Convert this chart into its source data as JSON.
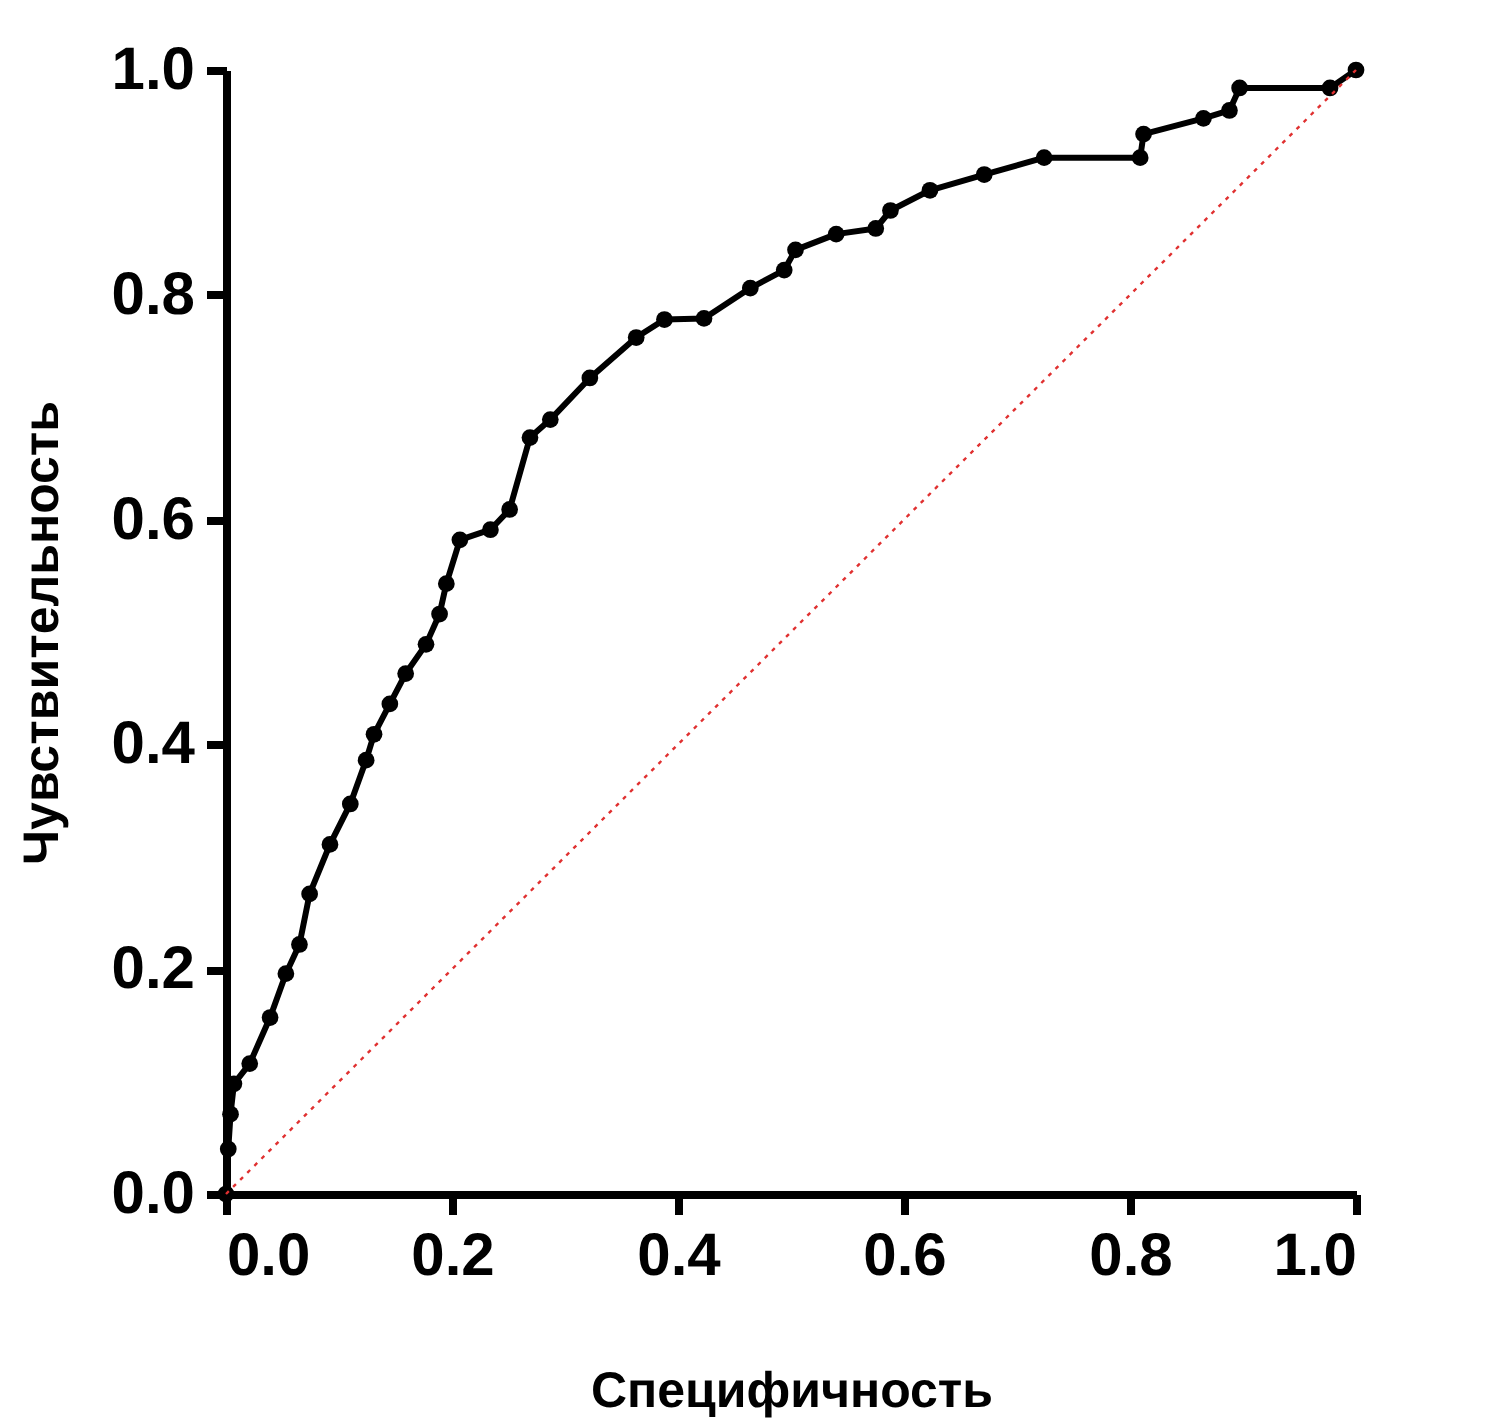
{
  "chart_data": {
    "type": "line",
    "xlabel": "Специфичность",
    "ylabel": "Чувствительность",
    "xlim": [
      0,
      1
    ],
    "ylim": [
      0,
      1
    ],
    "xticks": [
      {
        "value": 0,
        "label": "0.0"
      },
      0.2,
      0.4,
      0.6,
      0.8,
      {
        "value": 1,
        "label": "1.0"
      }
    ],
    "yticks": [
      {
        "value": 0,
        "label": "0.0"
      },
      0.2,
      0.4,
      0.6,
      0.8,
      {
        "value": 1,
        "label": "1.0"
      }
    ],
    "grid": false,
    "series": [
      {
        "color": "#000000",
        "marker": "circle",
        "line_style": "solid",
        "x": [
          0,
          0.002,
          0.004,
          0.007,
          0.021,
          0.039,
          0.053,
          0.065,
          0.074,
          0.092,
          0.11,
          0.124,
          0.131,
          0.145,
          0.159,
          0.177,
          0.189,
          0.195,
          0.207,
          0.234,
          0.251,
          0.269,
          0.287,
          0.322,
          0.363,
          0.388,
          0.423,
          0.464,
          0.494,
          0.504,
          0.54,
          0.575,
          0.588,
          0.623,
          0.671,
          0.724,
          0.809,
          0.812,
          0.865,
          0.888,
          0.897,
          0.977,
          1.0
        ],
        "values": [
          0,
          0.04,
          0.071,
          0.098,
          0.116,
          0.157,
          0.196,
          0.222,
          0.267,
          0.311,
          0.347,
          0.386,
          0.409,
          0.436,
          0.463,
          0.489,
          0.516,
          0.543,
          0.582,
          0.591,
          0.609,
          0.673,
          0.689,
          0.726,
          0.762,
          0.778,
          0.779,
          0.806,
          0.822,
          0.84,
          0.854,
          0.859,
          0.875,
          0.893,
          0.907,
          0.922,
          0.922,
          0.943,
          0.957,
          0.964,
          0.984,
          0.984,
          1.0
        ]
      },
      {
        "color": "#e03030",
        "marker": "none",
        "line_style": "dotted",
        "x": [
          0,
          1
        ],
        "values": [
          0,
          1
        ]
      }
    ]
  }
}
